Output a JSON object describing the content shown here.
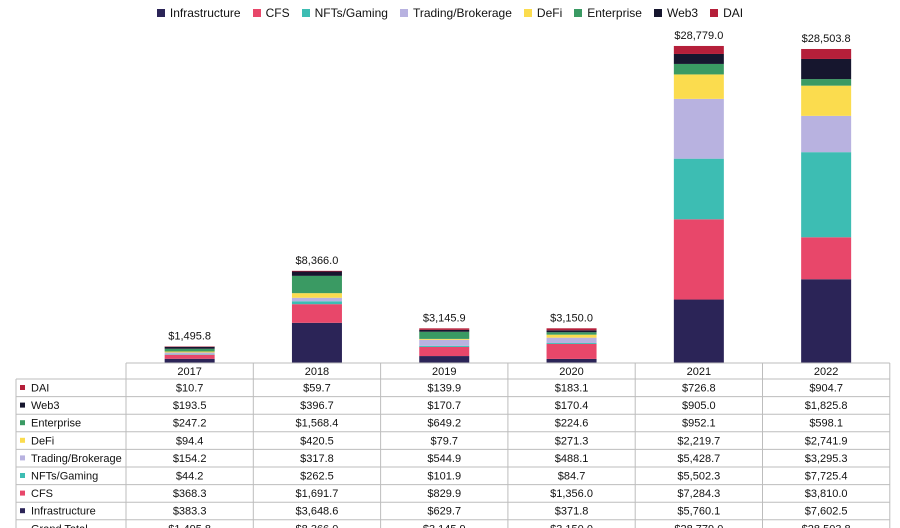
{
  "chart_data": {
    "type": "bar",
    "stacked": true,
    "categories": [
      "2017",
      "2018",
      "2019",
      "2020",
      "2021",
      "2022"
    ],
    "totals": [
      "$1,495.8",
      "$8,366.0",
      "$3,145.9",
      "$3,150.0",
      "$28,779.0",
      "$28,503.8"
    ],
    "total_values": [
      1495.8,
      8366.0,
      3145.9,
      3150.0,
      28779.0,
      28503.8
    ],
    "ylim": [
      0,
      30500
    ],
    "legend_position": "top",
    "series": [
      {
        "name": "Infrastructure",
        "color": "#2b2457",
        "values": [
          383.3,
          3648.6,
          629.7,
          371.8,
          5760.1,
          7602.5
        ],
        "labels": [
          "$383.3",
          "$3,648.6",
          "$629.7",
          "$371.8",
          "$5,760.1",
          "$7,602.5"
        ]
      },
      {
        "name": "CFS",
        "color": "#e8476a",
        "values": [
          368.3,
          1691.7,
          829.9,
          1356.0,
          7284.3,
          3810.0
        ],
        "labels": [
          "$368.3",
          "$1,691.7",
          "$829.9",
          "$1,356.0",
          "$7,284.3",
          "$3,810.0"
        ]
      },
      {
        "name": "NFTs/Gaming",
        "color": "#3dbdb3",
        "values": [
          44.2,
          262.5,
          101.9,
          84.7,
          5502.3,
          7725.4
        ],
        "labels": [
          "$44.2",
          "$262.5",
          "$101.9",
          "$84.7",
          "$5,502.3",
          "$7,725.4"
        ]
      },
      {
        "name": "Trading/Brokerage",
        "color": "#b8b2e0",
        "values": [
          154.2,
          317.8,
          544.9,
          488.1,
          5428.7,
          3295.3
        ],
        "labels": [
          "$154.2",
          "$317.8",
          "$544.9",
          "$488.1",
          "$5,428.7",
          "$3,295.3"
        ]
      },
      {
        "name": "DeFi",
        "color": "#fbdc4e",
        "values": [
          94.4,
          420.5,
          79.7,
          271.3,
          2219.7,
          2741.9
        ],
        "labels": [
          "$94.4",
          "$420.5",
          "$79.7",
          "$271.3",
          "$2,219.7",
          "$2,741.9"
        ]
      },
      {
        "name": "Enterprise",
        "color": "#3a9a63",
        "values": [
          247.2,
          1568.4,
          649.2,
          224.6,
          952.1,
          598.1
        ],
        "labels": [
          "$247.2",
          "$1,568.4",
          "$649.2",
          "$224.6",
          "$952.1",
          "$598.1"
        ]
      },
      {
        "name": "Web3",
        "color": "#16162e",
        "values": [
          193.5,
          396.7,
          170.7,
          170.4,
          905.0,
          1825.8
        ],
        "labels": [
          "$193.5",
          "$396.7",
          "$170.7",
          "$170.4",
          "$905.0",
          "$1,825.8"
        ]
      },
      {
        "name": "DAI",
        "color": "#b51f3a",
        "values": [
          10.7,
          59.7,
          139.9,
          183.1,
          726.8,
          904.7
        ],
        "labels": [
          "$10.7",
          "$59.7",
          "$139.9",
          "$183.1",
          "$726.8",
          "$904.7"
        ]
      }
    ],
    "legend_order": [
      "Infrastructure",
      "CFS",
      "NFTs/Gaming",
      "Trading/Brokerage",
      "DeFi",
      "Enterprise",
      "Web3",
      "DAI"
    ],
    "table_row_order": [
      "DAI",
      "Web3",
      "Enterprise",
      "DeFi",
      "Trading/Brokerage",
      "NFTs/Gaming",
      "CFS",
      "Infrastructure"
    ],
    "grand_total_label": "Grand Total"
  }
}
